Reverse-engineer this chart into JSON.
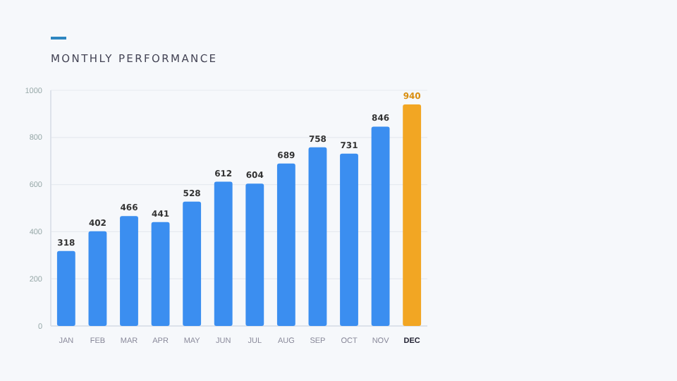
{
  "chart_data": {
    "type": "bar",
    "title": "MONTHLY PERFORMANCE",
    "categories": [
      "JAN",
      "FEB",
      "MAR",
      "APR",
      "MAY",
      "JUN",
      "JUL",
      "AUG",
      "SEP",
      "OCT",
      "NOV",
      "DEC"
    ],
    "values": [
      318,
      402,
      466,
      441,
      528,
      612,
      604,
      689,
      758,
      731,
      846,
      940
    ],
    "colors": [
      "#3b8ef0",
      "#3b8ef0",
      "#3b8ef0",
      "#3b8ef0",
      "#3b8ef0",
      "#3b8ef0",
      "#3b8ef0",
      "#3b8ef0",
      "#3b8ef0",
      "#3b8ef0",
      "#3b8ef0",
      "#f2a623"
    ],
    "ylim": [
      0,
      1000
    ],
    "yticks": [
      0,
      200,
      400,
      600,
      800,
      1000
    ],
    "grid": "y",
    "data_labels": true
  }
}
